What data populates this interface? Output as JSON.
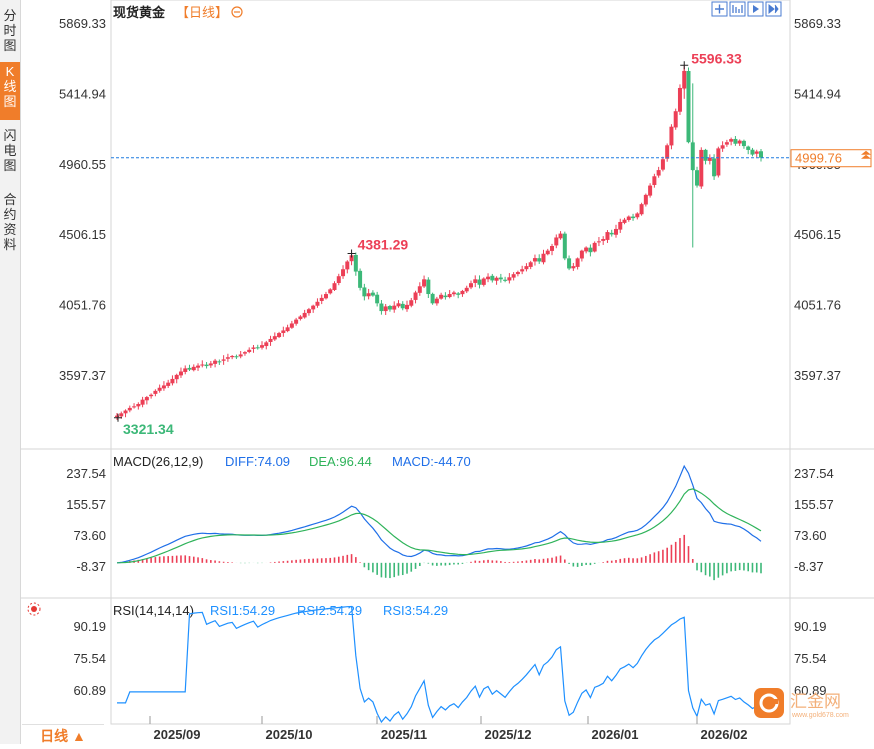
{
  "sidebar": {
    "tabs": [
      {
        "label": "分时图",
        "active": false
      },
      {
        "label": "K线图",
        "active": true
      },
      {
        "label": "闪电图",
        "active": false
      },
      {
        "label": "合约资料",
        "active": false
      }
    ]
  },
  "header": {
    "title": "现货黄金",
    "period_badge": "【日线】",
    "toolbar_icons": [
      "move-icon",
      "zoom-in-icon",
      "play-icon",
      "forward-icon"
    ]
  },
  "colors": {
    "up": "#ec3f56",
    "down": "#3cb878",
    "accent": "#f07d2a",
    "diff": "#1f6fe8",
    "dea": "#2fb35a",
    "rsi": "#1e90ff"
  },
  "bottom_tab": {
    "label": "日线",
    "arrow": "▲"
  },
  "watermark": {
    "brand": "汇金网",
    "url": "www.gold678.com"
  },
  "chart_data": [
    {
      "type": "candlestick",
      "title": "现货黄金",
      "yticks": [
        3597.37,
        4051.76,
        4506.15,
        4960.55,
        5414.94,
        5869.33
      ],
      "yticks_text": [
        "3597.37",
        "4051.76",
        "4506.15",
        "4960.55",
        "5414.94",
        "5869.33"
      ],
      "ylim": [
        3320,
        5869.33
      ],
      "xtick_labels": [
        "2025/09",
        "2025/10",
        "2025/11",
        "2025/12",
        "2026/01",
        "2026/02"
      ],
      "current_price": "4999.76",
      "current_value": 4999.76,
      "high_label": "5596.33",
      "high_value": 5596.33,
      "low_label": "3321.34",
      "low_value": 3321.34,
      "mid_high_label": "4381.29",
      "mid_high_value": 4381.29,
      "close": [
        3335,
        3350,
        3368,
        3385,
        3395,
        3410,
        3438,
        3455,
        3470,
        3495,
        3515,
        3530,
        3548,
        3572,
        3598,
        3620,
        3640,
        3632,
        3650,
        3658,
        3665,
        3655,
        3672,
        3690,
        3685,
        3698,
        3712,
        3720,
        3715,
        3730,
        3745,
        3760,
        3775,
        3770,
        3790,
        3808,
        3830,
        3848,
        3868,
        3885,
        3905,
        3930,
        3955,
        3975,
        3998,
        4022,
        4045,
        4070,
        4095,
        4120,
        4150,
        4190,
        4235,
        4280,
        4330,
        4370,
        4265,
        4160,
        4105,
        4125,
        4110,
        4060,
        4010,
        4040,
        4020,
        4045,
        4060,
        4028,
        4050,
        4080,
        4130,
        4170,
        4215,
        4120,
        4060,
        4090,
        4115,
        4100,
        4120,
        4130,
        4115,
        4140,
        4160,
        4190,
        4215,
        4180,
        4220,
        4232,
        4208,
        4225,
        4215,
        4205,
        4228,
        4248,
        4262,
        4280,
        4300,
        4325,
        4352,
        4330,
        4380,
        4400,
        4430,
        4485,
        4510,
        4350,
        4285,
        4300,
        4350,
        4400,
        4420,
        4390,
        4450,
        4460,
        4475,
        4520,
        4505,
        4540,
        4585,
        4600,
        4620,
        4610,
        4640,
        4700,
        4760,
        4820,
        4880,
        4920,
        4990,
        5080,
        5200,
        5300,
        5450,
        5560,
        5100,
        4920,
        4820,
        5050,
        4980,
        5000,
        4880,
        5060,
        5080,
        5100,
        5120,
        5090,
        5110,
        5075,
        5050,
        5020,
        5040,
        5000
      ]
    },
    {
      "type": "line",
      "title": "MACD(26,12,9)",
      "series": [
        {
          "name": "DIFF",
          "label": "DIFF:74.09",
          "value": 74.09
        },
        {
          "name": "DEA",
          "label": "DEA:96.44",
          "value": 96.44
        },
        {
          "name": "MACD",
          "label": "MACD:-44.70",
          "value": -44.7
        }
      ],
      "yticks": [
        -8.37,
        73.6,
        155.57,
        237.54
      ],
      "yticks_text": [
        "-8.37",
        "73.60",
        "155.57",
        "237.54"
      ],
      "ylim": [
        -60,
        270
      ]
    },
    {
      "type": "line",
      "title": "RSI(14,14,14)",
      "series": [
        {
          "name": "RSI1",
          "label": "RSI1:54.29",
          "value": 54.29
        },
        {
          "name": "RSI2",
          "label": "RSI2:54.29",
          "value": 54.29
        },
        {
          "name": "RSI3",
          "label": "RSI3:54.29",
          "value": 54.29
        }
      ],
      "yticks": [
        60.89,
        75.54,
        90.19
      ],
      "yticks_text": [
        "60.89",
        "75.54",
        "90.19"
      ],
      "ylim": [
        48,
        94
      ]
    }
  ]
}
